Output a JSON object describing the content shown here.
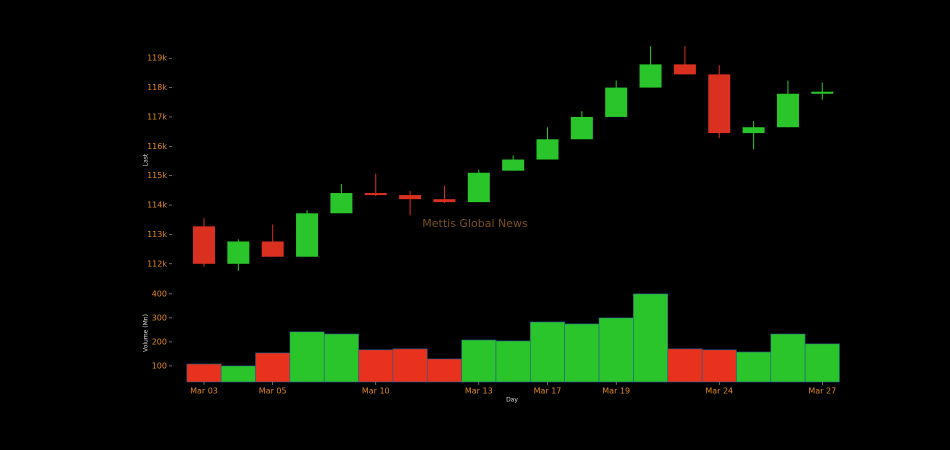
{
  "chart_data": [
    {
      "type": "candlestick",
      "ylabel": "Last",
      "watermark": "Mettis Global News",
      "up_color": "#2ac52a",
      "down_color": "#d93020",
      "open": [
        113276,
        112000,
        112760,
        112240,
        113720,
        114410,
        114340,
        114200,
        114100,
        115170,
        115550,
        116240,
        117000,
        118000,
        118790,
        118450,
        116450,
        116650,
        117790
      ],
      "high": [
        113550,
        112830,
        113340,
        113830,
        114720,
        115070,
        114480,
        114650,
        115200,
        115690,
        116650,
        117200,
        118240,
        119410,
        119410,
        118760,
        116860,
        118240,
        118170
      ],
      "low": [
        111900,
        111760,
        112240,
        112240,
        113720,
        114310,
        113650,
        114070,
        114100,
        115170,
        115550,
        116240,
        117000,
        118000,
        118450,
        116280,
        115900,
        116650,
        117590
      ],
      "close": [
        112000,
        112760,
        112240,
        113720,
        114410,
        114340,
        114200,
        114100,
        115100,
        115550,
        116240,
        117000,
        118000,
        118790,
        118450,
        116450,
        116650,
        117790,
        117860
      ],
      "ylim": [
        111380,
        119450
      ],
      "yticks": [
        {
          "value": 112000,
          "label": "112k"
        },
        {
          "value": 113000,
          "label": "113k"
        },
        {
          "value": 114000,
          "label": "114k"
        },
        {
          "value": 115000,
          "label": "115k"
        },
        {
          "value": 116000,
          "label": "116k"
        },
        {
          "value": 117000,
          "label": "117k"
        },
        {
          "value": 118000,
          "label": "118k"
        },
        {
          "value": 119000,
          "label": "119k"
        }
      ]
    },
    {
      "type": "bar",
      "ylabel": "Volume (Mn)",
      "xlabel": "Day",
      "categories": [
        "Mar 03",
        null,
        "Mar 05",
        null,
        null,
        "Mar 10",
        null,
        null,
        "Mar 13",
        null,
        "Mar 17",
        null,
        "Mar 19",
        null,
        null,
        "Mar 24",
        null,
        null,
        "Mar 27"
      ],
      "values": [
        108,
        100,
        154,
        242,
        233,
        167,
        171,
        129,
        208,
        204,
        283,
        275,
        300,
        400,
        171,
        167,
        158,
        233,
        192
      ],
      "colors": [
        "#e8321e",
        "#2ac52a",
        "#e8321e",
        "#2ac52a",
        "#2ac52a",
        "#e8321e",
        "#e8321e",
        "#e8321e",
        "#2ac52a",
        "#2ac52a",
        "#2ac52a",
        "#2ac52a",
        "#2ac52a",
        "#2ac52a",
        "#e8321e",
        "#e8321e",
        "#2ac52a",
        "#2ac52a",
        "#2ac52a"
      ],
      "ylim": [
        33,
        437
      ],
      "yticks": [
        100,
        200,
        300,
        400
      ]
    }
  ]
}
